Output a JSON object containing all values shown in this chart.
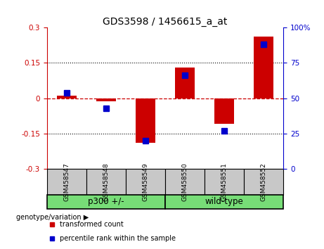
{
  "title": "GDS3598 / 1456615_a_at",
  "samples": [
    "GSM458547",
    "GSM458548",
    "GSM458549",
    "GSM458550",
    "GSM458551",
    "GSM458552"
  ],
  "red_values": [
    0.012,
    -0.012,
    -0.19,
    0.13,
    -0.11,
    0.26
  ],
  "blue_values": [
    54,
    43,
    20,
    66,
    27,
    88
  ],
  "group1_label": "p300 +/-",
  "group1_indices": [
    0,
    1,
    2
  ],
  "group2_label": "wild-type",
  "group2_indices": [
    3,
    4,
    5
  ],
  "group_color": "#77DD77",
  "sample_bg_color": "#C8C8C8",
  "ylim_left": [
    -0.3,
    0.3
  ],
  "ylim_right": [
    0,
    100
  ],
  "yticks_left": [
    -0.3,
    -0.15,
    0.0,
    0.15,
    0.3
  ],
  "yticks_right": [
    0,
    25,
    50,
    75,
    100
  ],
  "left_color": "#CC0000",
  "right_color": "#0000CC",
  "bar_width": 0.5,
  "blue_marker_size": 6,
  "background_color": "#ffffff",
  "title_fontsize": 10,
  "tick_fontsize": 7.5,
  "sample_fontsize": 6.5,
  "group_fontsize": 8.5,
  "legend_fontsize": 7,
  "genotype_label": "genotype/variation",
  "legend_items": [
    "transformed count",
    "percentile rank within the sample"
  ]
}
